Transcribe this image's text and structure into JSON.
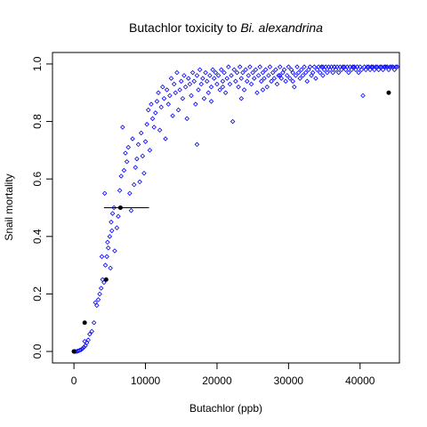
{
  "chart_data": {
    "type": "scatter",
    "title_prefix": "Butachlor toxicity to ",
    "title_species": "Bi. alexandrina",
    "xlabel": "Butachlor (ppb)",
    "ylabel": "Snail mortality",
    "xlim": [
      -3000,
      45500
    ],
    "ylim": [
      -0.04,
      1.04
    ],
    "x_ticks": [
      0,
      10000,
      20000,
      30000,
      40000
    ],
    "x_tick_labels": [
      "0",
      "10000",
      "20000",
      "30000",
      "40000"
    ],
    "y_ticks": [
      0.0,
      0.2,
      0.4,
      0.6,
      0.8,
      1.0
    ],
    "y_tick_labels": [
      "0.0",
      "0.2",
      "0.4",
      "0.6",
      "0.8",
      "1.0"
    ],
    "grid": false,
    "legend": "none",
    "colors": {
      "simulated": "#0000ff",
      "observed": "#000000",
      "line": "#000000"
    },
    "observed_points": [
      {
        "x": 0,
        "y": 0.0
      },
      {
        "x": 1500,
        "y": 0.1
      },
      {
        "x": 4500,
        "y": 0.25
      },
      {
        "x": 6500,
        "y": 0.5
      },
      {
        "x": 44000,
        "y": 0.9
      }
    ],
    "lc50_segment": {
      "x0": 4200,
      "x1": 10500,
      "y": 0.5
    },
    "simulated_series": {
      "name": "",
      "points": [
        [
          0,
          0
        ],
        [
          200,
          0
        ],
        [
          400,
          0
        ],
        [
          600,
          0.002
        ],
        [
          800,
          0.004
        ],
        [
          1000,
          0.006
        ],
        [
          1200,
          0.01
        ],
        [
          1400,
          0.015
        ],
        [
          1600,
          0.02
        ],
        [
          1800,
          0.03
        ],
        [
          2000,
          0.04
        ],
        [
          2200,
          0.06
        ],
        [
          1500,
          0.035
        ],
        [
          2500,
          0.07
        ],
        [
          2800,
          0.1
        ],
        [
          3000,
          0.17
        ],
        [
          3200,
          0.16
        ],
        [
          3400,
          0.18
        ],
        [
          3600,
          0.2
        ],
        [
          3800,
          0.22
        ],
        [
          4000,
          0.25
        ],
        [
          4200,
          0.24
        ],
        [
          4400,
          0.3
        ],
        [
          4600,
          0.33
        ],
        [
          4800,
          0.36
        ],
        [
          5000,
          0.4
        ],
        [
          5200,
          0.45
        ],
        [
          5400,
          0.48
        ],
        [
          5600,
          0.5
        ],
        [
          3900,
          0.33
        ],
        [
          4300,
          0.55
        ],
        [
          4700,
          0.38
        ],
        [
          5100,
          0.29
        ],
        [
          5300,
          0.42
        ],
        [
          5700,
          0.35
        ],
        [
          6000,
          0.43
        ],
        [
          6200,
          0.47
        ],
        [
          6400,
          0.56
        ],
        [
          6600,
          0.61
        ],
        [
          6800,
          0.78
        ],
        [
          7000,
          0.63
        ],
        [
          7200,
          0.69
        ],
        [
          7400,
          0.66
        ],
        [
          7600,
          0.71
        ],
        [
          7800,
          0.55
        ],
        [
          8000,
          0.49
        ],
        [
          8200,
          0.74
        ],
        [
          8400,
          0.58
        ],
        [
          8600,
          0.64
        ],
        [
          8800,
          0.67
        ],
        [
          9000,
          0.72
        ],
        [
          9200,
          0.59
        ],
        [
          9400,
          0.76
        ],
        [
          9600,
          0.68
        ],
        [
          9800,
          0.62
        ],
        [
          10000,
          0.73
        ],
        [
          10200,
          0.79
        ],
        [
          10400,
          0.84
        ],
        [
          10600,
          0.7
        ],
        [
          10800,
          0.86
        ],
        [
          11000,
          0.81
        ],
        [
          11200,
          0.78
        ],
        [
          11400,
          0.83
        ],
        [
          11600,
          0.87
        ],
        [
          11800,
          0.9
        ],
        [
          12000,
          0.77
        ],
        [
          12200,
          0.85
        ],
        [
          12400,
          0.92
        ],
        [
          12600,
          0.88
        ],
        [
          12800,
          0.74
        ],
        [
          13000,
          0.91
        ],
        [
          13200,
          0.86
        ],
        [
          13400,
          0.89
        ],
        [
          13600,
          0.95
        ],
        [
          13800,
          0.82
        ],
        [
          14000,
          0.93
        ],
        [
          14200,
          0.9
        ],
        [
          14400,
          0.97
        ],
        [
          14600,
          0.84
        ],
        [
          14800,
          0.91
        ],
        [
          15000,
          0.94
        ],
        [
          15200,
          0.88
        ],
        [
          15400,
          0.96
        ],
        [
          15600,
          0.92
        ],
        [
          15800,
          0.81
        ],
        [
          16000,
          0.95
        ],
        [
          16200,
          0.93
        ],
        [
          16400,
          0.89
        ],
        [
          16600,
          0.97
        ],
        [
          16800,
          0.94
        ],
        [
          17000,
          0.86
        ],
        [
          17200,
          0.96
        ],
        [
          17400,
          0.91
        ],
        [
          17600,
          0.98
        ],
        [
          17800,
          0.93
        ],
        [
          18000,
          0.95
        ],
        [
          18200,
          0.88
        ],
        [
          18400,
          0.97
        ],
        [
          18600,
          0.94
        ],
        [
          18800,
          0.9
        ],
        [
          19000,
          0.96
        ],
        [
          19200,
          0.92
        ],
        [
          19400,
          0.98
        ],
        [
          19600,
          0.95
        ],
        [
          19800,
          0.97
        ],
        [
          20000,
          0.93
        ],
        [
          20200,
          0.96
        ],
        [
          20400,
          0.91
        ],
        [
          20600,
          0.98
        ],
        [
          20800,
          0.94
        ],
        [
          21000,
          0.97
        ],
        [
          21200,
          0.9
        ],
        [
          21400,
          0.95
        ],
        [
          21600,
          0.99
        ],
        [
          21800,
          0.93
        ],
        [
          22000,
          0.96
        ],
        [
          22200,
          0.8
        ],
        [
          22400,
          0.98
        ],
        [
          22600,
          0.94
        ],
        [
          22800,
          0.97
        ],
        [
          23000,
          0.92
        ],
        [
          23200,
          0.99
        ],
        [
          23400,
          0.95
        ],
        [
          23600,
          0.97
        ],
        [
          23800,
          0.91
        ],
        [
          24000,
          0.98
        ],
        [
          24200,
          0.94
        ],
        [
          24400,
          0.96
        ],
        [
          24600,
          0.99
        ],
        [
          24800,
          0.93
        ],
        [
          25000,
          0.97
        ],
        [
          25200,
          0.95
        ],
        [
          25400,
          0.98
        ],
        [
          25600,
          0.9
        ],
        [
          25800,
          0.96
        ],
        [
          26000,
          0.99
        ],
        [
          26200,
          0.94
        ],
        [
          26400,
          0.97
        ],
        [
          26600,
          0.95
        ],
        [
          26800,
          0.98
        ],
        [
          27000,
          0.92
        ],
        [
          27200,
          0.96
        ],
        [
          27400,
          0.99
        ],
        [
          27600,
          0.94
        ],
        [
          27800,
          0.97
        ],
        [
          28000,
          0.95
        ],
        [
          28200,
          0.98
        ],
        [
          28400,
          0.93
        ],
        [
          28600,
          0.96
        ],
        [
          28800,
          0.99
        ],
        [
          29000,
          0.95
        ],
        [
          29200,
          0.97
        ],
        [
          29400,
          0.98
        ],
        [
          29600,
          0.94
        ],
        [
          29800,
          0.96
        ],
        [
          30000,
          0.99
        ],
        [
          30200,
          0.95
        ],
        [
          30400,
          0.98
        ],
        [
          30600,
          0.97
        ],
        [
          30800,
          0.92
        ],
        [
          31000,
          0.96
        ],
        [
          31200,
          0.99
        ],
        [
          31400,
          0.97
        ],
        [
          31600,
          0.95
        ],
        [
          31800,
          0.98
        ],
        [
          32000,
          0.96
        ],
        [
          32200,
          0.99
        ],
        [
          32400,
          0.97
        ],
        [
          32600,
          0.94
        ],
        [
          32800,
          0.98
        ],
        [
          33000,
          0.99
        ],
        [
          33200,
          0.96
        ],
        [
          33400,
          0.97
        ],
        [
          33600,
          0.99
        ],
        [
          33800,
          0.95
        ],
        [
          34000,
          0.98
        ],
        [
          34200,
          0.99
        ],
        [
          34400,
          0.97
        ],
        [
          34600,
          0.99
        ],
        [
          34800,
          0.96
        ],
        [
          35000,
          0.98
        ],
        [
          35200,
          0.99
        ],
        [
          35400,
          0.97
        ],
        [
          35600,
          0.99
        ],
        [
          35800,
          0.98
        ],
        [
          36000,
          0.99
        ],
        [
          36200,
          0.97
        ],
        [
          36400,
          0.99
        ],
        [
          36600,
          0.98
        ],
        [
          36800,
          0.99
        ],
        [
          37000,
          0.97
        ],
        [
          37200,
          0.99
        ],
        [
          37400,
          0.98
        ],
        [
          37600,
          0.99
        ],
        [
          37800,
          0.99
        ],
        [
          38000,
          0.98
        ],
        [
          38200,
          0.99
        ],
        [
          38400,
          0.97
        ],
        [
          38600,
          0.99
        ],
        [
          38800,
          0.98
        ],
        [
          39000,
          0.99
        ],
        [
          39200,
          0.99
        ],
        [
          39400,
          0.98
        ],
        [
          39600,
          0.99
        ],
        [
          39800,
          0.97
        ],
        [
          40000,
          0.99
        ],
        [
          40200,
          0.98
        ],
        [
          40400,
          0.89
        ],
        [
          40600,
          0.99
        ],
        [
          40800,
          0.98
        ],
        [
          41000,
          0.99
        ],
        [
          41200,
          0.99
        ],
        [
          41400,
          0.98
        ],
        [
          41600,
          0.99
        ],
        [
          41800,
          0.99
        ],
        [
          42000,
          0.98
        ],
        [
          42200,
          0.99
        ],
        [
          42400,
          0.99
        ],
        [
          42600,
          0.98
        ],
        [
          42800,
          0.99
        ],
        [
          43000,
          0.99
        ],
        [
          43200,
          0.98
        ],
        [
          43400,
          0.99
        ],
        [
          43600,
          0.99
        ],
        [
          43800,
          0.99
        ],
        [
          44000,
          0.98
        ],
        [
          44200,
          0.99
        ],
        [
          44400,
          0.99
        ],
        [
          44600,
          0.99
        ],
        [
          44800,
          0.98
        ],
        [
          45000,
          0.99
        ],
        [
          45200,
          0.99
        ],
        [
          17200,
          0.72
        ],
        [
          20800,
          0.92
        ],
        [
          26400,
          0.91
        ],
        [
          30600,
          0.94
        ],
        [
          34800,
          0.99
        ],
        [
          23400,
          0.88
        ],
        [
          19200,
          0.87
        ],
        [
          28800,
          0.96
        ],
        [
          36400,
          0.99
        ],
        [
          39000,
          0.99
        ],
        [
          41600,
          0.99
        ],
        [
          43400,
          0.99
        ]
      ]
    }
  }
}
